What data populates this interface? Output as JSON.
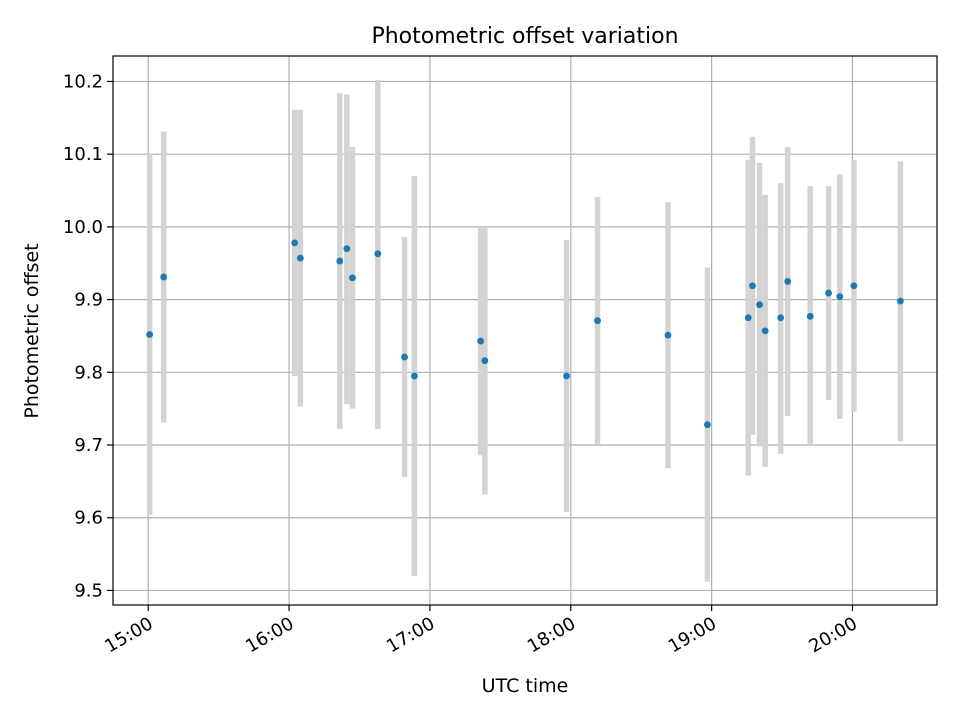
{
  "chart_data": {
    "type": "scatter",
    "title": "Photometric offset variation",
    "xlabel": "UTC time",
    "ylabel": "Photometric offset",
    "grid": true,
    "xlim_hours": [
      14.75,
      20.6
    ],
    "ylim": [
      9.48,
      10.235
    ],
    "x_ticks": [
      {
        "value": 15,
        "label": "15:00"
      },
      {
        "value": 16,
        "label": "16:00"
      },
      {
        "value": 17,
        "label": "17:00"
      },
      {
        "value": 18,
        "label": "18:00"
      },
      {
        "value": 19,
        "label": "19:00"
      },
      {
        "value": 20,
        "label": "20:00"
      }
    ],
    "y_ticks": [
      {
        "value": 9.5,
        "label": "9.5"
      },
      {
        "value": 9.6,
        "label": "9.6"
      },
      {
        "value": 9.7,
        "label": "9.7"
      },
      {
        "value": 9.8,
        "label": "9.8"
      },
      {
        "value": 9.9,
        "label": "9.9"
      },
      {
        "value": 10.0,
        "label": "10.0"
      },
      {
        "value": 10.1,
        "label": "10.1"
      },
      {
        "value": 10.2,
        "label": "10.2"
      }
    ],
    "point_color": "#1f77b4",
    "errorbar_color": "#d3d3d3",
    "points": [
      {
        "time": "15:01",
        "x": 15.01,
        "y": 9.852,
        "err_low": 9.604,
        "err_high": 10.1
      },
      {
        "time": "15:07",
        "x": 15.11,
        "y": 9.931,
        "err_low": 9.731,
        "err_high": 10.131
      },
      {
        "time": "16:02",
        "x": 16.04,
        "y": 9.978,
        "err_low": 9.795,
        "err_high": 10.161
      },
      {
        "time": "16:05",
        "x": 16.08,
        "y": 9.957,
        "err_low": 9.753,
        "err_high": 10.161
      },
      {
        "time": "16:21",
        "x": 16.36,
        "y": 9.953,
        "err_low": 9.722,
        "err_high": 10.184
      },
      {
        "time": "16:25",
        "x": 16.41,
        "y": 9.97,
        "err_low": 9.756,
        "err_high": 10.182
      },
      {
        "time": "16:27",
        "x": 16.45,
        "y": 9.93,
        "err_low": 9.75,
        "err_high": 10.11
      },
      {
        "time": "16:37",
        "x": 16.63,
        "y": 9.963,
        "err_low": 9.722,
        "err_high": 10.202
      },
      {
        "time": "16:49",
        "x": 16.82,
        "y": 9.821,
        "err_low": 9.656,
        "err_high": 9.986
      },
      {
        "time": "16:53",
        "x": 16.89,
        "y": 9.795,
        "err_low": 9.52,
        "err_high": 10.07
      },
      {
        "time": "17:22",
        "x": 17.36,
        "y": 9.843,
        "err_low": 9.686,
        "err_high": 10.0
      },
      {
        "time": "17:23",
        "x": 17.39,
        "y": 9.816,
        "err_low": 9.632,
        "err_high": 10.0
      },
      {
        "time": "17:58",
        "x": 17.97,
        "y": 9.795,
        "err_low": 9.608,
        "err_high": 9.982
      },
      {
        "time": "18:11",
        "x": 18.19,
        "y": 9.871,
        "err_low": 9.701,
        "err_high": 10.041
      },
      {
        "time": "18:41",
        "x": 18.69,
        "y": 9.851,
        "err_low": 9.668,
        "err_high": 10.034
      },
      {
        "time": "18:58",
        "x": 18.97,
        "y": 9.728,
        "err_low": 9.512,
        "err_high": 9.944
      },
      {
        "time": "19:15",
        "x": 19.26,
        "y": 9.875,
        "err_low": 9.658,
        "err_high": 10.092
      },
      {
        "time": "19:17",
        "x": 19.29,
        "y": 9.919,
        "err_low": 9.714,
        "err_high": 10.124
      },
      {
        "time": "19:20",
        "x": 19.34,
        "y": 9.893,
        "err_low": 9.698,
        "err_high": 10.088
      },
      {
        "time": "19:23",
        "x": 19.38,
        "y": 9.857,
        "err_low": 9.67,
        "err_high": 10.044
      },
      {
        "time": "19:29",
        "x": 19.49,
        "y": 9.875,
        "err_low": 9.688,
        "err_high": 10.06
      },
      {
        "time": "19:32",
        "x": 19.54,
        "y": 9.925,
        "err_low": 9.74,
        "err_high": 10.11
      },
      {
        "time": "19:42",
        "x": 19.7,
        "y": 9.877,
        "err_low": 9.7,
        "err_high": 10.056
      },
      {
        "time": "19:50",
        "x": 19.83,
        "y": 9.909,
        "err_low": 9.762,
        "err_high": 10.056
      },
      {
        "time": "19:54",
        "x": 19.91,
        "y": 9.904,
        "err_low": 9.736,
        "err_high": 10.072
      },
      {
        "time": "20:00",
        "x": 20.01,
        "y": 9.919,
        "err_low": 9.746,
        "err_high": 10.092
      },
      {
        "time": "20:20",
        "x": 20.34,
        "y": 9.898,
        "err_low": 9.705,
        "err_high": 10.09
      }
    ]
  }
}
